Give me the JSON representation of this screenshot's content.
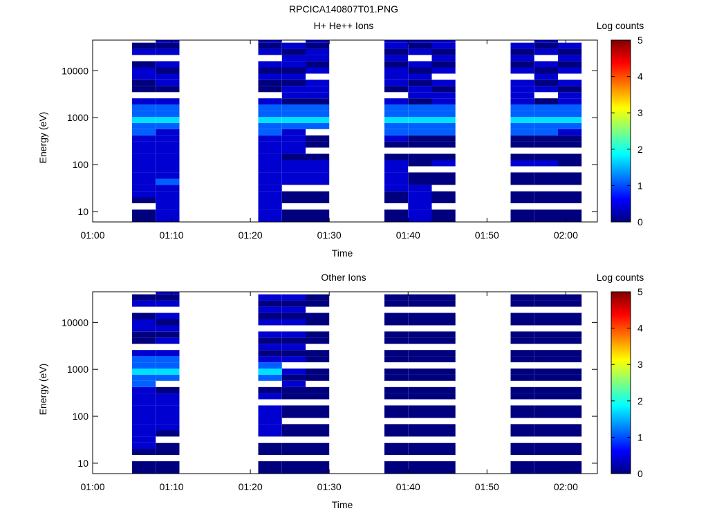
{
  "figure_title": "RPCICA140807T01.PNG",
  "colorbar": {
    "label": "Log counts",
    "ticks": [
      "0",
      "1",
      "2",
      "3",
      "4",
      "5"
    ],
    "range": [
      0,
      5
    ],
    "colormap": [
      "#00007f",
      "#0000ff",
      "#007fff",
      "#00ffff",
      "#7fff7f",
      "#ffff00",
      "#ff7f00",
      "#ff0000",
      "#7f0000"
    ]
  },
  "chart_data": [
    {
      "type": "heatmap",
      "title": "H+ He++ Ions",
      "xlabel": "Time",
      "ylabel": "Energy (eV)",
      "yscale": "log",
      "ylim": [
        6,
        45000
      ],
      "xlim_minutes": [
        0,
        64
      ],
      "x_ticks": [
        "01:00",
        "01:10",
        "01:20",
        "01:30",
        "01:40",
        "01:50",
        "02:00"
      ],
      "y_ticks": [
        "10",
        "100",
        "1000",
        "10000"
      ],
      "energy_bins_eV": [
        6,
        8,
        11,
        15,
        20,
        27,
        37,
        50,
        68,
        92,
        125,
        170,
        230,
        310,
        420,
        570,
        770,
        1040,
        1410,
        1910,
        2590,
        3500,
        4750,
        6430,
        8700,
        11800,
        16000,
        21600,
        29300,
        39700
      ],
      "columns": [
        {
          "start": "01:05",
          "end": "01:08",
          "levels": "000011111111112232210001100100"
        },
        {
          "start": "01:08",
          "end": "01:11",
          "levels": "111111211111111232210011010101"
        },
        {
          "start": "01:21",
          "end": "01:24",
          "levels": "111111111111112232210001010101"
        },
        {
          "start": "01:24",
          "end": "01:27",
          "levels": "000000111101111232201101011010"
        },
        {
          "start": "01:27",
          "end": "01:30",
          "levels": "000000111100000232201110101101"
        },
        {
          "start": "01:37",
          "end": "01:40",
          "levels": "000001111100012232210011101011"
        },
        {
          "start": "01:40",
          "end": "01:43",
          "levels": "111111000000002232201101010101"
        },
        {
          "start": "01:43",
          "end": "01:46",
          "levels": "000000000100002232211010101011"
        },
        {
          "start": "01:53",
          "end": "01:56",
          "levels": "000000000100002232211110101010"
        },
        {
          "start": "01:56",
          "end": "01:59",
          "levels": "000000000100002232200101010101"
        },
        {
          "start": "01:59",
          "end": "02:02",
          "levels": "000000000000001232211010101010"
        }
      ]
    },
    {
      "type": "heatmap",
      "title": "Other Ions",
      "xlabel": "Time",
      "ylabel": "Energy (eV)",
      "yscale": "log",
      "ylim": [
        6,
        45000
      ],
      "xlim_minutes": [
        0,
        64
      ],
      "x_ticks": [
        "01:00",
        "01:10",
        "01:20",
        "01:30",
        "01:40",
        "01:50",
        "02:00"
      ],
      "y_ticks": [
        "10",
        "100",
        "1000",
        "10000"
      ],
      "energy_bins_eV": [
        6,
        8,
        11,
        15,
        20,
        27,
        37,
        50,
        68,
        92,
        125,
        170,
        230,
        310,
        420,
        570,
        770,
        1040,
        1410,
        1910,
        2590,
        3500,
        4750,
        6430,
        8700,
        11800,
        16000,
        21600,
        29300,
        39700
      ],
      "columns": [
        {
          "start": "01:05",
          "end": "01:08",
          "levels": "000011111111112232210001100100"
        },
        {
          "start": "01:08",
          "end": "01:11",
          "levels": "000000011111100232210101010101"
        },
        {
          "start": "01:21",
          "end": "01:24",
          "levels": "000000111110100232101010101010"
        },
        {
          "start": "01:24",
          "end": "01:27",
          "levels": "000000000000001010101010101010"
        },
        {
          "start": "01:27",
          "end": "01:30",
          "levels": "000000000000000000000000000000"
        },
        {
          "start": "01:37",
          "end": "01:40",
          "levels": "000000000000000000000000000000"
        },
        {
          "start": "01:40",
          "end": "01:43",
          "levels": "000000000000000000000000000000"
        },
        {
          "start": "01:43",
          "end": "01:46",
          "levels": "000000000000000000000000000000"
        },
        {
          "start": "01:53",
          "end": "01:56",
          "levels": "000000000000000000000000000000"
        },
        {
          "start": "01:56",
          "end": "01:59",
          "levels": "000000000000000000000000000000"
        },
        {
          "start": "01:59",
          "end": "02:02",
          "levels": "000000000000000000000000000000"
        }
      ]
    }
  ]
}
